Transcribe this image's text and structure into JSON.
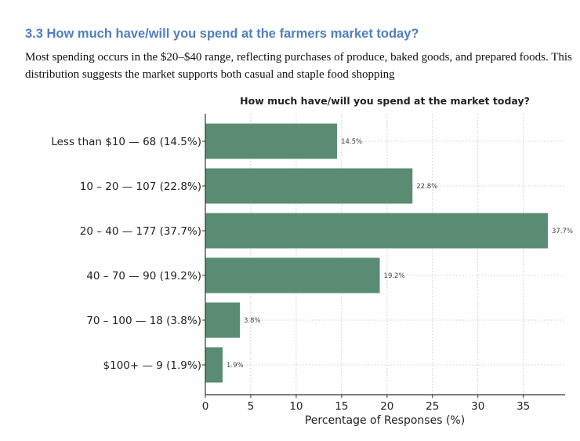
{
  "heading": "3.3 How much have/will you spend at the farmers market today?",
  "paragraph": "Most spending occurs in the $20–$40 range, reflecting purchases of produce, baked goods, and prepared foods. This distribution suggests the market supports both casual and staple food shopping",
  "colors": {
    "bar": "#5a8c74",
    "heading": "#4f7fbd"
  },
  "chart_data": {
    "type": "bar",
    "orientation": "horizontal",
    "title": "How much have/will you spend at the market today?",
    "xlabel": "Percentage of Responses (%)",
    "ylabel": "",
    "categories": [
      "Less than $10 — 68 (14.5%)",
      "10 – 20 — 107 (22.8%)",
      "20 – 40 — 177 (37.7%)",
      "40 – 70 — 90 (19.2%)",
      "70 – 100 — 18 (3.8%)",
      "$100+ — 9 (1.9%)"
    ],
    "values": [
      14.5,
      22.8,
      37.7,
      19.2,
      3.8,
      1.9
    ],
    "data_labels": [
      "14.5%",
      "22.8%",
      "37.7%",
      "19.2%",
      "3.8%",
      "1.9%"
    ],
    "xticks": [
      "0",
      "5",
      "10",
      "15",
      "20",
      "25",
      "30",
      "35"
    ],
    "xlim": [
      0,
      39.6
    ],
    "grid": true
  }
}
